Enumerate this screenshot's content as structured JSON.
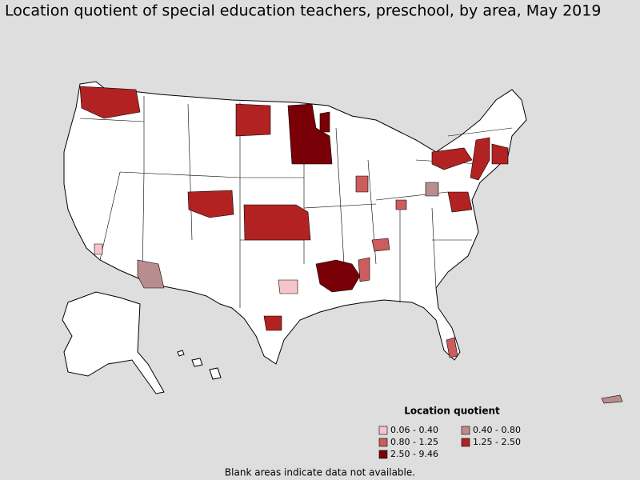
{
  "title": "Location quotient of special education teachers, preschool, by area, May 2019",
  "legend": {
    "title": "Location quotient",
    "items": [
      {
        "label": "0.06 - 0.40",
        "color": "#f7c4cb"
      },
      {
        "label": "0.40 - 0.80",
        "color": "#b98d8d"
      },
      {
        "label": "0.80 - 1.25",
        "color": "#cd5c5c"
      },
      {
        "label": "1.25 - 2.50",
        "color": "#b22222"
      },
      {
        "label": "2.50 - 9.46",
        "color": "#7a0008"
      }
    ]
  },
  "footnote": "Blank areas indicate data not available."
}
